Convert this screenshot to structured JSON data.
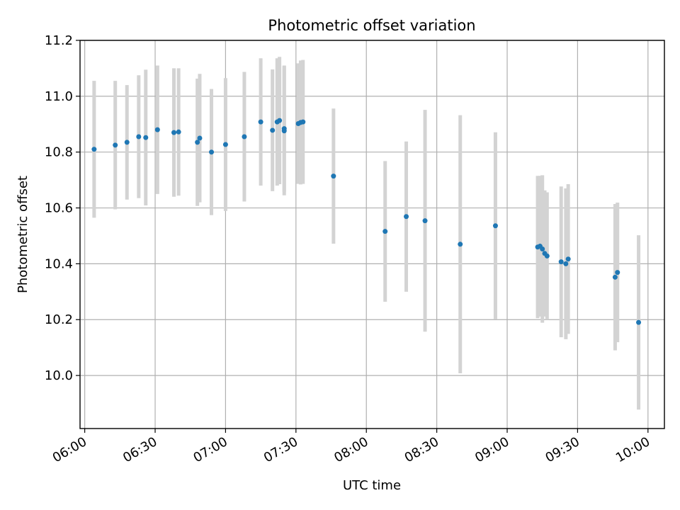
{
  "chart_data": {
    "type": "scatter",
    "title": "Photometric offset variation",
    "xlabel": "UTC time",
    "ylabel": "Photometric offset",
    "xlim": [
      "05:58",
      "10:07"
    ],
    "ylim": [
      9.81,
      11.2
    ],
    "x_ticks": [
      "06:00",
      "06:30",
      "07:00",
      "07:30",
      "08:00",
      "08:30",
      "09:00",
      "09:30",
      "10:00"
    ],
    "y_ticks": [
      10.0,
      10.2,
      10.4,
      10.6,
      10.8,
      11.0,
      11.2
    ],
    "y_tick_labels": [
      "10.0",
      "10.2",
      "10.4",
      "10.6",
      "10.8",
      "11.0",
      "11.2"
    ],
    "grid": true,
    "marker_color": "#1f77b4",
    "errorbar_color": "#d3d3d3",
    "series": [
      {
        "points": [
          {
            "x": "06:04",
            "y": 10.81,
            "err": 0.245
          },
          {
            "x": "06:13",
            "y": 10.825,
            "err": 0.23
          },
          {
            "x": "06:18",
            "y": 10.835,
            "err": 0.205
          },
          {
            "x": "06:23",
            "y": 10.855,
            "err": 0.22
          },
          {
            "x": "06:26",
            "y": 10.852,
            "err": 0.243
          },
          {
            "x": "06:31",
            "y": 10.88,
            "err": 0.23
          },
          {
            "x": "06:38",
            "y": 10.87,
            "err": 0.23
          },
          {
            "x": "06:40",
            "y": 10.872,
            "err": 0.228
          },
          {
            "x": "06:48",
            "y": 10.835,
            "err": 0.228
          },
          {
            "x": "06:49",
            "y": 10.85,
            "err": 0.23
          },
          {
            "x": "06:54",
            "y": 10.8,
            "err": 0.226
          },
          {
            "x": "07:00",
            "y": 10.827,
            "err": 0.238
          },
          {
            "x": "07:08",
            "y": 10.855,
            "err": 0.232
          },
          {
            "x": "07:15",
            "y": 10.908,
            "err": 0.228
          },
          {
            "x": "07:20",
            "y": 10.878,
            "err": 0.218
          },
          {
            "x": "07:22",
            "y": 10.908,
            "err": 0.228
          },
          {
            "x": "07:23",
            "y": 10.913,
            "err": 0.228
          },
          {
            "x": "07:25",
            "y": 10.876,
            "err": 0.231
          },
          {
            "x": "07:25",
            "y": 10.884,
            "err": 0.226
          },
          {
            "x": "07:31",
            "y": 10.902,
            "err": 0.216
          },
          {
            "x": "07:32",
            "y": 10.906,
            "err": 0.222
          },
          {
            "x": "07:33",
            "y": 10.908,
            "err": 0.222
          },
          {
            "x": "07:46",
            "y": 10.714,
            "err": 0.242
          },
          {
            "x": "08:08",
            "y": 10.516,
            "err": 0.252
          },
          {
            "x": "08:17",
            "y": 10.569,
            "err": 0.269
          },
          {
            "x": "08:25",
            "y": 10.554,
            "err": 0.397
          },
          {
            "x": "08:40",
            "y": 10.47,
            "err": 0.462
          },
          {
            "x": "08:55",
            "y": 10.536,
            "err": 0.335
          },
          {
            "x": "09:13",
            "y": 10.46,
            "err": 0.255
          },
          {
            "x": "09:14",
            "y": 10.463,
            "err": 0.252
          },
          {
            "x": "09:15",
            "y": 10.453,
            "err": 0.264
          },
          {
            "x": "09:16",
            "y": 10.437,
            "err": 0.226
          },
          {
            "x": "09:17",
            "y": 10.428,
            "err": 0.228
          },
          {
            "x": "09:23",
            "y": 10.407,
            "err": 0.27
          },
          {
            "x": "09:25",
            "y": 10.4,
            "err": 0.27
          },
          {
            "x": "09:26",
            "y": 10.417,
            "err": 0.268
          },
          {
            "x": "09:46",
            "y": 10.352,
            "err": 0.262
          },
          {
            "x": "09:47",
            "y": 10.369,
            "err": 0.25
          },
          {
            "x": "09:56",
            "y": 10.19,
            "err": 0.312
          }
        ]
      }
    ]
  }
}
